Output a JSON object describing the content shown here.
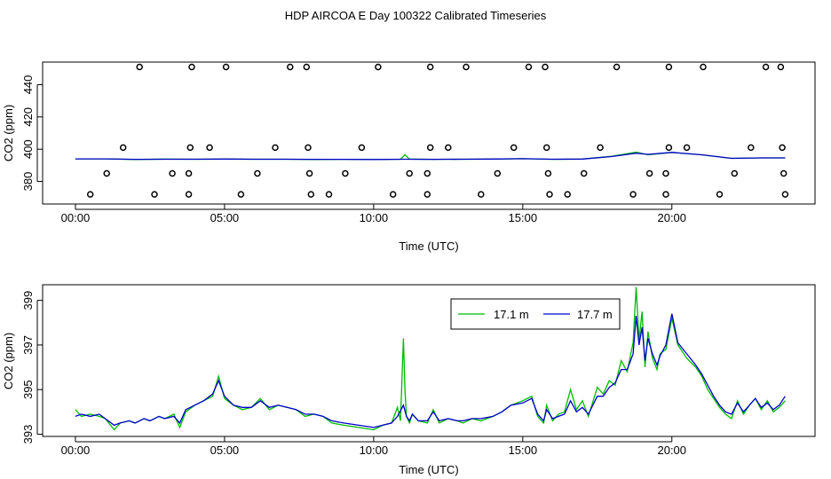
{
  "title": "HDP AIRCOA E  Day 100322  Calibrated Timeseries",
  "colors": {
    "green": "#00bb00",
    "blue": "#0000cc",
    "axis": "#000000"
  },
  "chart_data": [
    {
      "type": "scatter",
      "xlabel": "Time (UTC)",
      "ylabel": "CO2 (ppm)",
      "xlim": [
        -1.1,
        24.8
      ],
      "ylim": [
        366,
        454
      ],
      "xticks": [
        0,
        5,
        10,
        15,
        20
      ],
      "xtick_labels": [
        "00:00",
        "05:00",
        "10:00",
        "15:00",
        "20:00"
      ],
      "yticks": [
        380,
        400,
        420,
        440
      ],
      "ytick_labels": [
        "380",
        "400",
        "420",
        "440"
      ],
      "grid": false,
      "circles": [
        [
          2.15,
          451
        ],
        [
          3.9,
          451
        ],
        [
          5.05,
          451
        ],
        [
          7.2,
          451
        ],
        [
          7.75,
          451
        ],
        [
          10.15,
          451
        ],
        [
          11.9,
          451
        ],
        [
          13.1,
          451
        ],
        [
          15.2,
          451
        ],
        [
          15.75,
          451
        ],
        [
          18.15,
          451
        ],
        [
          19.9,
          451
        ],
        [
          21.05,
          451
        ],
        [
          23.15,
          451
        ],
        [
          23.65,
          451
        ],
        [
          1.6,
          401
        ],
        [
          3.85,
          401
        ],
        [
          4.5,
          401
        ],
        [
          6.7,
          401
        ],
        [
          7.8,
          401
        ],
        [
          9.6,
          401
        ],
        [
          11.9,
          401
        ],
        [
          12.5,
          401
        ],
        [
          14.7,
          401
        ],
        [
          15.8,
          401
        ],
        [
          17.6,
          401
        ],
        [
          19.9,
          401
        ],
        [
          20.5,
          401
        ],
        [
          22.65,
          401
        ],
        [
          23.7,
          401
        ],
        [
          1.05,
          385
        ],
        [
          3.25,
          385
        ],
        [
          3.8,
          385
        ],
        [
          6.1,
          385
        ],
        [
          7.85,
          385
        ],
        [
          9.05,
          385
        ],
        [
          11.2,
          385
        ],
        [
          11.8,
          385
        ],
        [
          14.15,
          385
        ],
        [
          15.85,
          385
        ],
        [
          17.05,
          385
        ],
        [
          19.25,
          385
        ],
        [
          19.8,
          385
        ],
        [
          22.1,
          385
        ],
        [
          23.75,
          385
        ],
        [
          0.5,
          372
        ],
        [
          2.65,
          372
        ],
        [
          3.8,
          372
        ],
        [
          5.55,
          372
        ],
        [
          7.9,
          372
        ],
        [
          8.5,
          372
        ],
        [
          10.65,
          372
        ],
        [
          11.8,
          372
        ],
        [
          13.6,
          372
        ],
        [
          15.9,
          372
        ],
        [
          16.5,
          372
        ],
        [
          18.7,
          372
        ],
        [
          19.8,
          372
        ],
        [
          21.6,
          372
        ],
        [
          23.8,
          372
        ]
      ],
      "series": [
        {
          "color": "green",
          "x": [
            0,
            1,
            2,
            3,
            4,
            5,
            6,
            7,
            8,
            9,
            10,
            10.9,
            11.05,
            11.2,
            12,
            13,
            14,
            15,
            16,
            17,
            18,
            18.8,
            19.2,
            20,
            21,
            22,
            23,
            23.8
          ],
          "y": [
            394,
            394,
            393.6,
            393.9,
            393.8,
            393.9,
            393.8,
            393.8,
            393.6,
            393.7,
            393.6,
            393.8,
            396.5,
            393.9,
            393.7,
            393.8,
            393.9,
            394.1,
            393.7,
            393.9,
            395.6,
            398.2,
            396.5,
            398,
            396.5,
            394.3,
            394.6,
            394.6
          ]
        },
        {
          "color": "blue",
          "x": [
            0,
            1,
            2,
            3,
            4,
            5,
            6,
            7,
            8,
            9,
            10,
            11,
            12,
            13,
            14,
            15,
            16,
            17,
            18,
            18.8,
            19.2,
            20,
            21,
            22,
            23,
            23.8
          ],
          "y": [
            394,
            394,
            393.7,
            393.8,
            393.8,
            393.9,
            393.8,
            393.8,
            393.7,
            393.7,
            393.6,
            393.8,
            393.7,
            393.8,
            393.9,
            394.1,
            393.8,
            393.9,
            395.5,
            397.5,
            396.8,
            398,
            396.5,
            394.3,
            394.6,
            394.6
          ]
        }
      ]
    },
    {
      "type": "line",
      "xlabel": "Time (UTC)",
      "ylabel": "CO2 (ppm)",
      "xlim": [
        -1.1,
        24.8
      ],
      "ylim": [
        392.9,
        399.7
      ],
      "xticks": [
        0,
        5,
        10,
        15,
        20
      ],
      "xtick_labels": [
        "00:00",
        "05:00",
        "10:00",
        "15:00",
        "20:00"
      ],
      "yticks": [
        393,
        395,
        397,
        399
      ],
      "ytick_labels": [
        "393",
        "395",
        "397",
        "399"
      ],
      "grid": false,
      "legend": {
        "position": "top-right",
        "entries": [
          "17.1 m",
          "17.7 m"
        ]
      },
      "series": [
        {
          "name": "17.1 m",
          "color": "green",
          "x": [
            0,
            0.2,
            0.5,
            0.8,
            1,
            1.3,
            1.5,
            1.8,
            2,
            2.3,
            2.5,
            2.8,
            3,
            3.3,
            3.5,
            3.7,
            4,
            4.3,
            4.6,
            4.8,
            5,
            5.3,
            5.6,
            5.9,
            6.2,
            6.5,
            6.8,
            7.1,
            7.4,
            7.7,
            8,
            8.3,
            8.6,
            9,
            9.5,
            10,
            10.3,
            10.6,
            10.8,
            10.9,
            11,
            11.05,
            11.1,
            11.2,
            11.3,
            11.5,
            11.8,
            12,
            12.2,
            12.5,
            12.8,
            13,
            13.3,
            13.6,
            14,
            14.3,
            14.6,
            15,
            15.3,
            15.5,
            15.7,
            15.8,
            16,
            16.2,
            16.4,
            16.6,
            16.8,
            17,
            17.2,
            17.5,
            17.7,
            17.9,
            18.1,
            18.3,
            18.5,
            18.7,
            18.8,
            18.9,
            19,
            19.1,
            19.2,
            19.35,
            19.5,
            19.6,
            19.8,
            20,
            20.2,
            20.5,
            20.8,
            21,
            21.2,
            21.4,
            21.6,
            21.8,
            22,
            22.2,
            22.4,
            22.6,
            22.8,
            23,
            23.2,
            23.4,
            23.6,
            23.8
          ],
          "y": [
            394.1,
            393.8,
            393.9,
            393.8,
            393.7,
            393.2,
            393.5,
            393.6,
            393.5,
            393.7,
            393.6,
            393.8,
            393.7,
            393.9,
            393.3,
            394,
            394.3,
            394.5,
            394.7,
            395.6,
            394.6,
            394.3,
            394.1,
            394.2,
            394.6,
            394.1,
            394.3,
            394.2,
            394.1,
            393.8,
            393.9,
            393.8,
            393.5,
            393.4,
            393.3,
            393.2,
            393.4,
            393.5,
            394.2,
            393.6,
            397.3,
            395.0,
            393.8,
            393.5,
            393.9,
            393.6,
            393.5,
            394.1,
            393.5,
            393.7,
            393.6,
            393.5,
            393.7,
            393.6,
            393.8,
            394.0,
            394.3,
            394.5,
            394.7,
            393.8,
            393.5,
            394.3,
            393.6,
            393.9,
            394.0,
            395.0,
            394.1,
            394.5,
            393.8,
            395.1,
            394.8,
            395.4,
            395.2,
            396.3,
            395.8,
            397.1,
            399.6,
            397.2,
            398.5,
            396.0,
            397.6,
            396.4,
            395.9,
            396.6,
            396.8,
            398.2,
            397.0,
            396.4,
            396.0,
            395.6,
            395.0,
            394.6,
            394.2,
            393.9,
            393.7,
            394.5,
            393.9,
            394.3,
            394.6,
            394.1,
            394.5,
            394.0,
            394.2,
            394.5
          ],
          "comment": ""
        },
        {
          "name": "17.7 m",
          "color": "blue",
          "x": [
            0,
            0.2,
            0.5,
            0.8,
            1,
            1.3,
            1.5,
            1.8,
            2,
            2.3,
            2.5,
            2.8,
            3,
            3.3,
            3.5,
            3.7,
            4,
            4.3,
            4.6,
            4.8,
            5,
            5.3,
            5.6,
            5.9,
            6.2,
            6.5,
            6.8,
            7.1,
            7.4,
            7.7,
            8,
            8.3,
            8.6,
            9,
            9.5,
            10,
            10.3,
            10.6,
            10.8,
            11,
            11.1,
            11.2,
            11.3,
            11.5,
            11.8,
            12,
            12.2,
            12.5,
            12.8,
            13,
            13.3,
            13.6,
            14,
            14.3,
            14.6,
            15,
            15.3,
            15.5,
            15.7,
            15.8,
            16,
            16.2,
            16.4,
            16.6,
            16.8,
            17,
            17.2,
            17.5,
            17.7,
            17.9,
            18.1,
            18.3,
            18.5,
            18.7,
            18.8,
            18.9,
            19,
            19.1,
            19.2,
            19.35,
            19.5,
            19.6,
            19.8,
            20,
            20.2,
            20.5,
            20.8,
            21,
            21.2,
            21.4,
            21.6,
            21.8,
            22,
            22.2,
            22.4,
            22.6,
            22.8,
            23,
            23.2,
            23.4,
            23.6,
            23.8
          ],
          "y": [
            393.8,
            393.9,
            393.8,
            393.9,
            393.7,
            393.4,
            393.5,
            393.6,
            393.5,
            393.7,
            393.6,
            393.8,
            393.7,
            393.8,
            393.5,
            394.1,
            394.3,
            394.5,
            394.8,
            395.4,
            394.7,
            394.3,
            394.2,
            394.2,
            394.5,
            394.2,
            394.3,
            394.2,
            394.1,
            393.9,
            393.9,
            393.8,
            393.6,
            393.5,
            393.4,
            393.3,
            393.4,
            393.5,
            393.8,
            394.3,
            393.8,
            393.6,
            393.9,
            393.6,
            393.6,
            394.0,
            393.6,
            393.7,
            393.6,
            393.6,
            393.7,
            393.7,
            393.8,
            394.0,
            394.3,
            394.4,
            394.6,
            393.9,
            393.6,
            394.1,
            393.7,
            393.8,
            393.9,
            394.5,
            394.0,
            394.2,
            393.9,
            394.7,
            394.7,
            395.1,
            395.3,
            395.9,
            395.9,
            396.6,
            398.3,
            397.0,
            397.8,
            396.3,
            397.3,
            396.6,
            396.1,
            396.5,
            397.0,
            398.4,
            397.1,
            396.6,
            396.1,
            395.7,
            395.2,
            394.7,
            394.3,
            394.0,
            393.9,
            394.4,
            394.0,
            394.3,
            394.6,
            394.2,
            394.4,
            394.1,
            394.3,
            394.7
          ]
        }
      ]
    }
  ]
}
